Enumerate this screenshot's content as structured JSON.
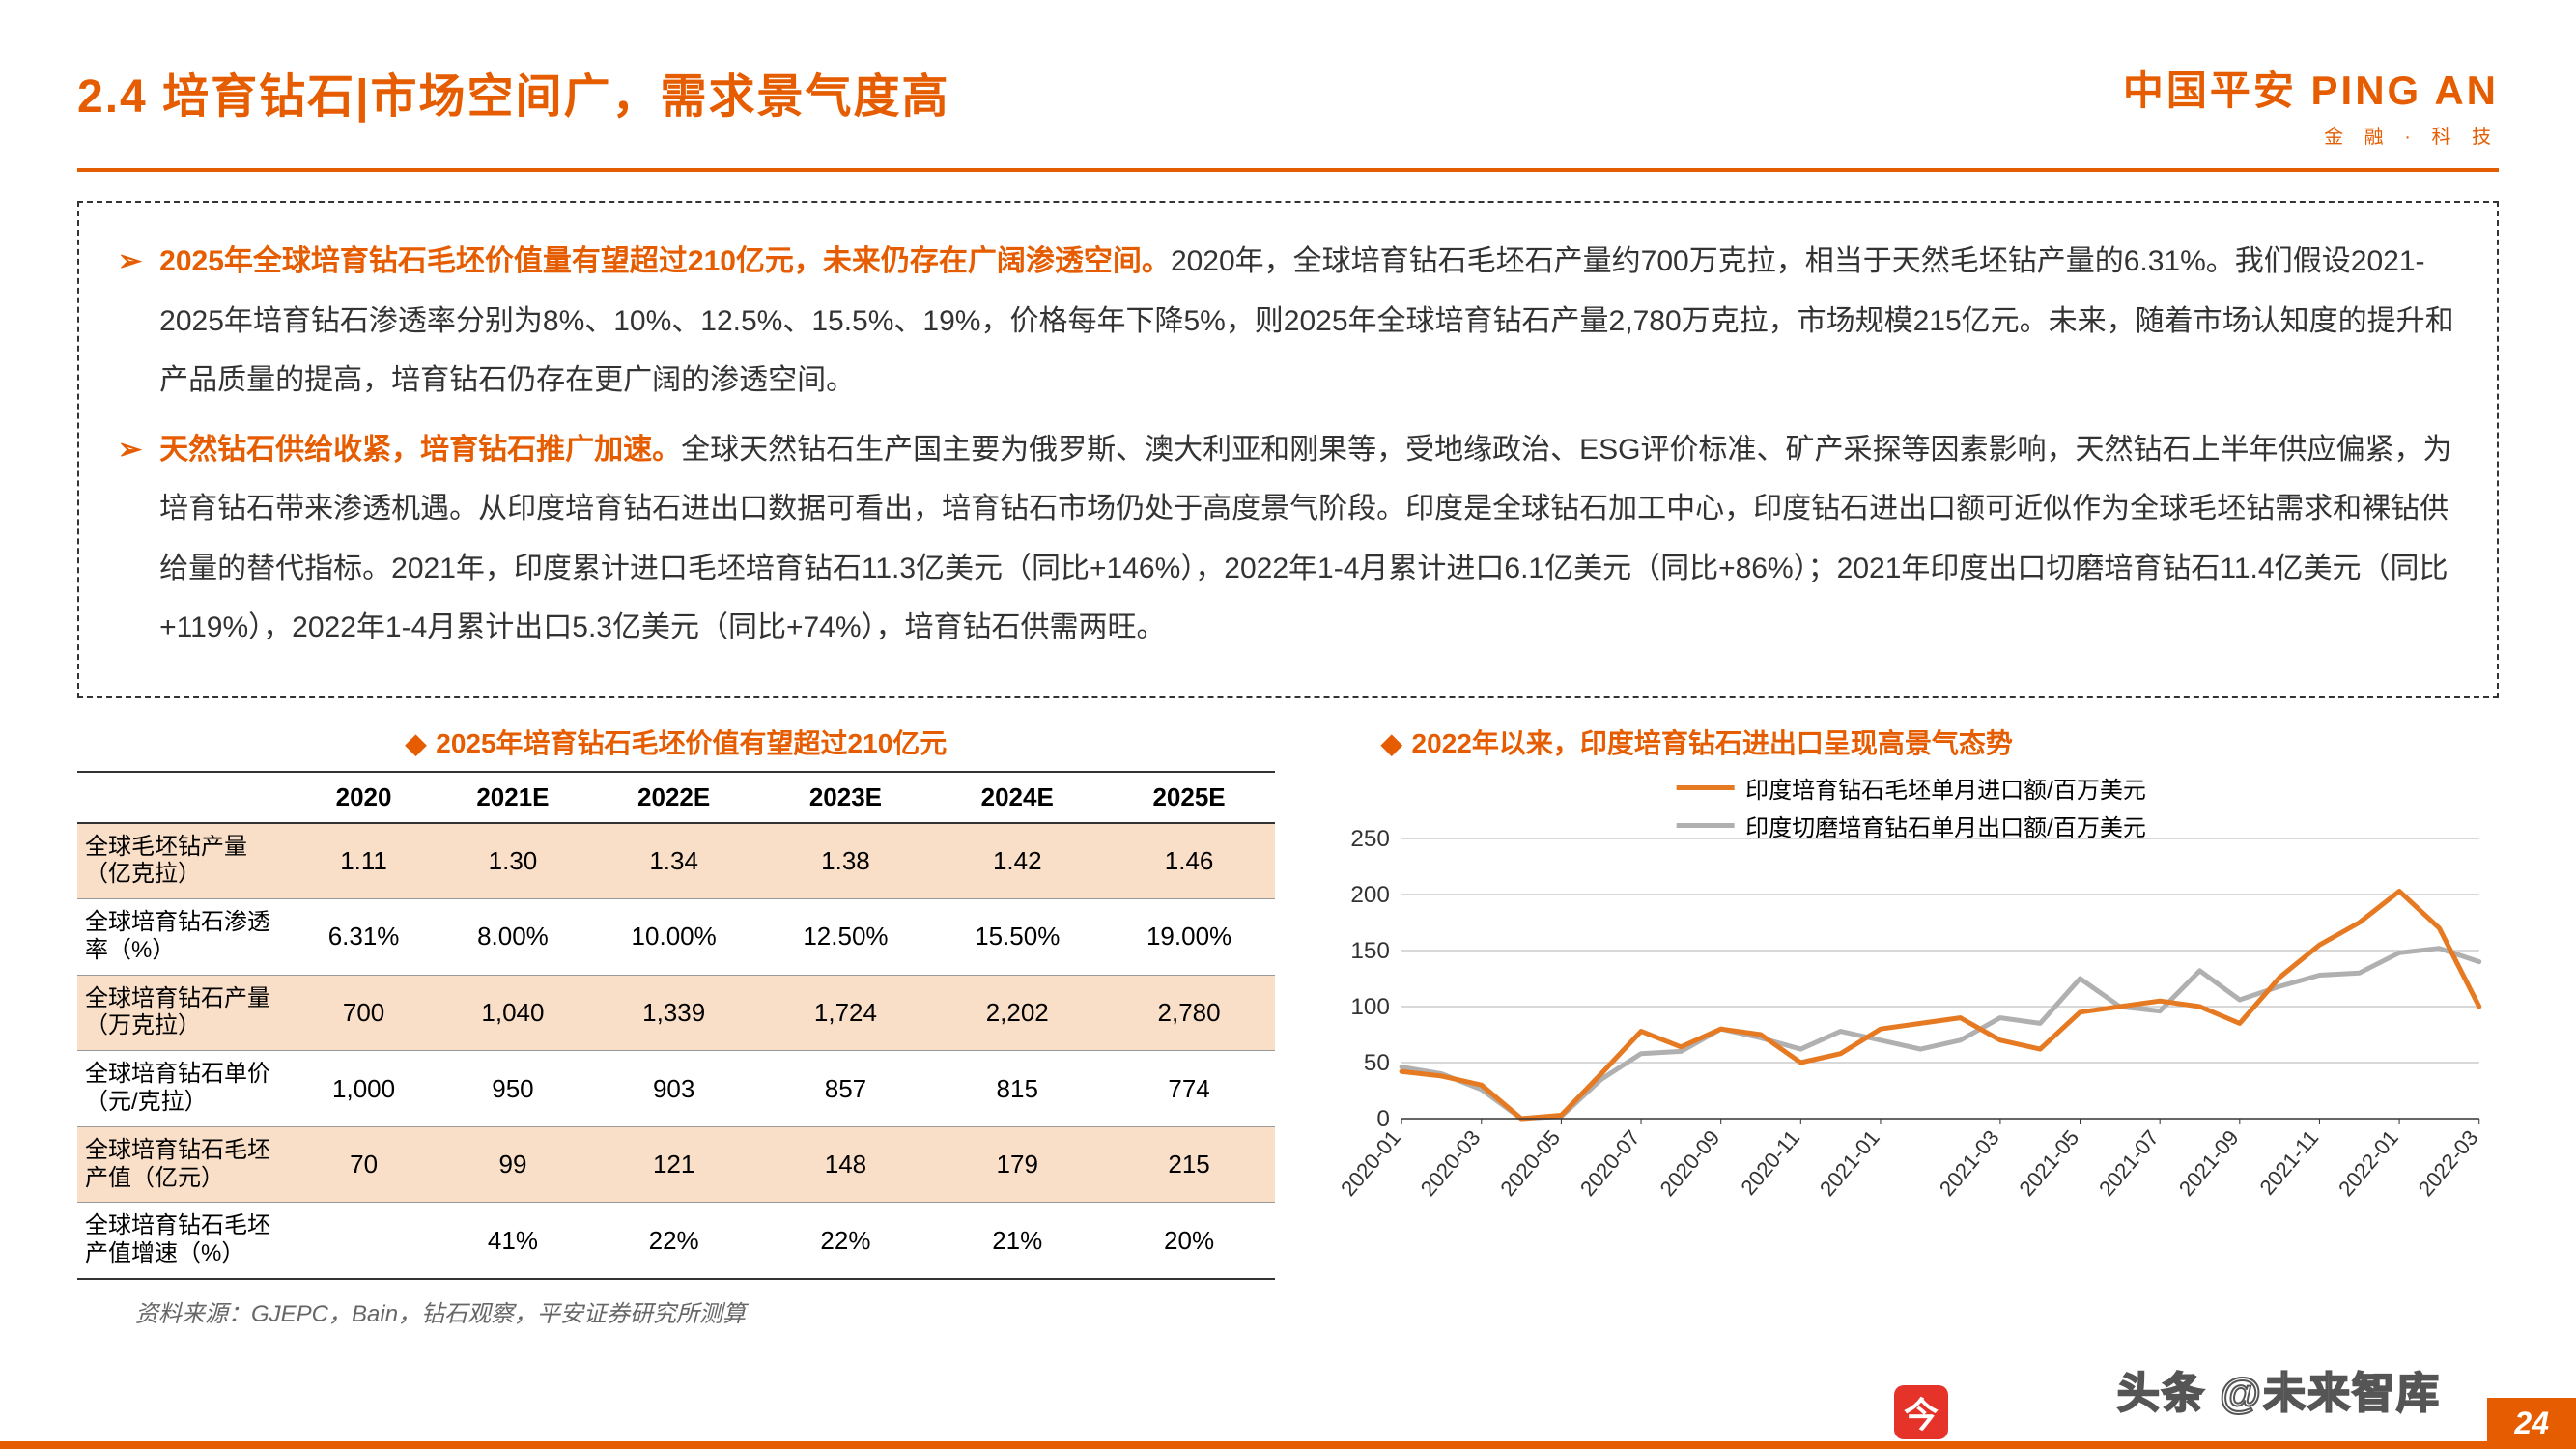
{
  "header": {
    "title": "2.4 培育钻石|市场空间广，需求景气度高",
    "logo_main": "中国平安 PING AN",
    "logo_sub": "金 融 · 科 技"
  },
  "bullets": [
    {
      "lead": "2025年全球培育钻石毛坯价值量有望超过210亿元，未来仍存在广阔渗透空间。",
      "body": "2020年，全球培育钻石毛坯石产量约700万克拉，相当于天然毛坯钻产量的6.31%。我们假设2021-2025年培育钻石渗透率分别为8%、10%、12.5%、15.5%、19%，价格每年下降5%，则2025年全球培育钻石产量2,780万克拉，市场规模215亿元。未来，随着市场认知度的提升和产品质量的提高，培育钻石仍存在更广阔的渗透空间。"
    },
    {
      "lead": "天然钻石供给收紧，培育钻石推广加速。",
      "body": "全球天然钻石生产国主要为俄罗斯、澳大利亚和刚果等，受地缘政治、ESG评价标准、矿产采探等因素影响，天然钻石上半年供应偏紧，为培育钻石带来渗透机遇。从印度培育钻石进出口数据可看出，培育钻石市场仍处于高度景气阶段。印度是全球钻石加工中心，印度钻石进出口额可近似作为全球毛坯钻需求和裸钻供给量的替代指标。2021年，印度累计进口毛坯培育钻石11.3亿美元（同比+146%），2022年1-4月累计进口6.1亿美元（同比+86%）；2021年印度出口切磨培育钻石11.4亿美元（同比+119%），2022年1-4月累计出口5.3亿美元（同比+74%），培育钻石供需两旺。"
    }
  ],
  "table": {
    "title": "2025年培育钻石毛坯价值有望超过210亿元",
    "columns": [
      "",
      "2020",
      "2021E",
      "2022E",
      "2023E",
      "2024E",
      "2025E"
    ],
    "rows": [
      {
        "label": "全球毛坯钻产量（亿克拉）",
        "stripe": true,
        "cells": [
          "1.11",
          "1.30",
          "1.34",
          "1.38",
          "1.42",
          "1.46"
        ]
      },
      {
        "label": "全球培育钻石渗透率（%）",
        "stripe": false,
        "cells": [
          "6.31%",
          "8.00%",
          "10.00%",
          "12.50%",
          "15.50%",
          "19.00%"
        ]
      },
      {
        "label": "全球培育钻石产量（万克拉）",
        "stripe": true,
        "cells": [
          "700",
          "1,040",
          "1,339",
          "1,724",
          "2,202",
          "2,780"
        ]
      },
      {
        "label": "全球培育钻石单价（元/克拉）",
        "stripe": false,
        "cells": [
          "1,000",
          "950",
          "903",
          "857",
          "815",
          "774"
        ]
      },
      {
        "label": "全球培育钻石毛坯产值（亿元）",
        "stripe": true,
        "cells": [
          "70",
          "99",
          "121",
          "148",
          "179",
          "215"
        ]
      },
      {
        "label": "全球培育钻石毛坯产值增速（%）",
        "stripe": false,
        "cells": [
          "",
          "41%",
          "22%",
          "22%",
          "21%",
          "20%"
        ]
      }
    ]
  },
  "chart": {
    "title": "2022年以来，印度培育钻石进出口呈现高景气态势",
    "type": "line",
    "legend": [
      {
        "label": "印度培育钻石毛坯单月进口额/百万美元",
        "color": "#e67a22"
      },
      {
        "label": "印度切磨培育钻石单月出口额/百万美元",
        "color": "#b0b0b0"
      }
    ],
    "y_axis": {
      "min": 0,
      "max": 250,
      "step": 50,
      "grid_color": "#b0b0b0"
    },
    "x_labels": [
      "2020-01",
      "2020-03",
      "2020-05",
      "2020-07",
      "2020-09",
      "2020-11",
      "2021-01",
      "2021-03",
      "2021-05",
      "2021-07",
      "2021-09",
      "2021-11",
      "2022-01",
      "2022-03"
    ],
    "series_import_color": "#e67a22",
    "series_export_color": "#b0b0b0",
    "line_width": 5,
    "series_import": [
      42,
      38,
      30,
      0,
      3,
      40,
      78,
      64,
      80,
      75,
      50,
      58,
      80,
      85,
      90,
      70,
      62,
      95,
      100,
      105,
      100,
      85,
      126,
      155,
      175,
      203,
      170,
      100
    ],
    "series_export": [
      46,
      40,
      26,
      0,
      2,
      35,
      58,
      60,
      80,
      72,
      62,
      78,
      70,
      62,
      70,
      90,
      85,
      125,
      100,
      96,
      132,
      106,
      118,
      128,
      130,
      148,
      152,
      140
    ],
    "background_color": "#ffffff"
  },
  "source": "资料来源：GJEPC，Bain，钻石观察，平安证券研究所测算",
  "page_num": "24",
  "watermark": "头条 @未来智库",
  "tt": "今"
}
